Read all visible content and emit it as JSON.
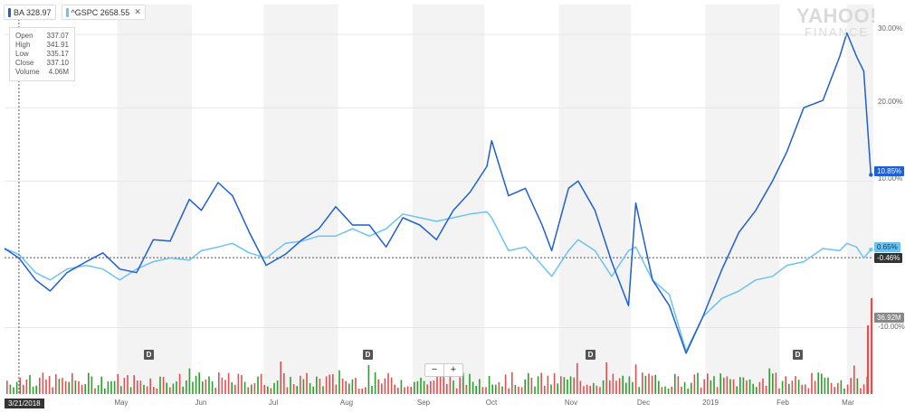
{
  "legend": [
    {
      "label": "BA 328.97",
      "color": "#1f5fd1",
      "close_icon": "close-icon"
    },
    {
      "label": "^GSPC 2658.55",
      "color": "#6cc3f2",
      "close_icon": "close-icon"
    }
  ],
  "tooltip": {
    "rows": [
      {
        "label": "Open",
        "value": "337.07"
      },
      {
        "label": "High",
        "value": "341.91"
      },
      {
        "label": "Low",
        "value": "335.17"
      },
      {
        "label": "Close",
        "value": "337.10"
      },
      {
        "label": "Volume",
        "value": "4.06M"
      }
    ]
  },
  "watermark": {
    "line1": "YAHOO!",
    "line2": "FINANCE"
  },
  "crosshair_date": "3/21/2018",
  "badges": {
    "ba": "10.85%",
    "gspc": "0.65%",
    "baseline": "-0.46%",
    "volume": "36.92M"
  },
  "zoom": {
    "minus": "−",
    "plus": "+"
  },
  "dividend_marker": "D",
  "colors": {
    "ba": "#1f5fd1",
    "gspc": "#6cc3f2",
    "vol_up": "#2ca02c",
    "vol_down": "#e05050",
    "band": "#f3f3f3"
  },
  "chart_data": {
    "type": "line",
    "ylim": [
      -14,
      31
    ],
    "yticks": [
      30,
      20,
      10,
      -10
    ],
    "ytick_labels": [
      "30.00%",
      "20.00%",
      "10.00%",
      "-10.00%"
    ],
    "x_labels": [
      "May",
      "Jun",
      "Jul",
      "Aug",
      "Sep",
      "Oct",
      "Nov",
      "Dec",
      "2019",
      "Feb",
      "Mar"
    ],
    "x_label_dates": [
      "2018-05-01",
      "2018-06-01",
      "2018-07-01",
      "2018-08-01",
      "2018-09-01",
      "2018-10-01",
      "2018-11-01",
      "2018-12-01",
      "2019-01-01",
      "2019-02-01",
      "2019-03-01"
    ],
    "x_range": [
      "2018-03-15",
      "2019-03-12"
    ],
    "crosshair": "2018-03-21",
    "dividend_dates": [
      "2018-05-10",
      "2018-08-09",
      "2018-11-08",
      "2019-02-07"
    ],
    "series": [
      {
        "name": "BA",
        "points": [
          [
            "2018-03-15",
            0.8
          ],
          [
            "2018-03-21",
            -0.5
          ],
          [
            "2018-03-28",
            -3.5
          ],
          [
            "2018-04-03",
            -5.0
          ],
          [
            "2018-04-10",
            -2.5
          ],
          [
            "2018-04-18",
            -1.0
          ],
          [
            "2018-04-25",
            0.2
          ],
          [
            "2018-05-02",
            -2.0
          ],
          [
            "2018-05-09",
            -2.5
          ],
          [
            "2018-05-16",
            2.0
          ],
          [
            "2018-05-23",
            1.8
          ],
          [
            "2018-05-31",
            7.5
          ],
          [
            "2018-06-05",
            6.0
          ],
          [
            "2018-06-12",
            9.8
          ],
          [
            "2018-06-18",
            8.0
          ],
          [
            "2018-06-25",
            3.0
          ],
          [
            "2018-07-02",
            -1.5
          ],
          [
            "2018-07-10",
            0.0
          ],
          [
            "2018-07-17",
            2.0
          ],
          [
            "2018-07-24",
            3.5
          ],
          [
            "2018-07-31",
            6.5
          ],
          [
            "2018-08-07",
            4.0
          ],
          [
            "2018-08-14",
            4.0
          ],
          [
            "2018-08-21",
            1.0
          ],
          [
            "2018-08-28",
            5.0
          ],
          [
            "2018-09-04",
            4.0
          ],
          [
            "2018-09-11",
            2.0
          ],
          [
            "2018-09-18",
            6.0
          ],
          [
            "2018-09-25",
            8.5
          ],
          [
            "2018-10-02",
            12.0
          ],
          [
            "2018-10-04",
            15.5
          ],
          [
            "2018-10-11",
            8.0
          ],
          [
            "2018-10-18",
            9.0
          ],
          [
            "2018-10-25",
            4.0
          ],
          [
            "2018-10-29",
            0.5
          ],
          [
            "2018-11-05",
            9.0
          ],
          [
            "2018-11-09",
            10.0
          ],
          [
            "2018-11-16",
            6.0
          ],
          [
            "2018-11-23",
            -1.0
          ],
          [
            "2018-11-30",
            -7.0
          ],
          [
            "2018-12-03",
            7.0
          ],
          [
            "2018-12-10",
            -3.5
          ],
          [
            "2018-12-17",
            -7.0
          ],
          [
            "2018-12-24",
            -13.5
          ],
          [
            "2018-12-31",
            -8.5
          ],
          [
            "2019-01-08",
            -2.0
          ],
          [
            "2019-01-15",
            3.0
          ],
          [
            "2019-01-22",
            6.0
          ],
          [
            "2019-01-29",
            10.0
          ],
          [
            "2019-02-04",
            14.0
          ],
          [
            "2019-02-11",
            20.0
          ],
          [
            "2019-02-19",
            21.0
          ],
          [
            "2019-02-26",
            27.0
          ],
          [
            "2019-03-01",
            30.2
          ],
          [
            "2019-03-05",
            27.0
          ],
          [
            "2019-03-08",
            25.0
          ],
          [
            "2019-03-11",
            10.85
          ]
        ]
      },
      {
        "name": "^GSPC",
        "points": [
          [
            "2018-03-15",
            0.8
          ],
          [
            "2018-03-21",
            0.0
          ],
          [
            "2018-03-28",
            -2.5
          ],
          [
            "2018-04-03",
            -3.5
          ],
          [
            "2018-04-10",
            -2.0
          ],
          [
            "2018-04-18",
            -1.5
          ],
          [
            "2018-04-25",
            -2.0
          ],
          [
            "2018-05-02",
            -3.5
          ],
          [
            "2018-05-09",
            -2.0
          ],
          [
            "2018-05-16",
            -1.0
          ],
          [
            "2018-05-23",
            -0.5
          ],
          [
            "2018-05-31",
            -0.8
          ],
          [
            "2018-06-05",
            0.5
          ],
          [
            "2018-06-12",
            1.0
          ],
          [
            "2018-06-18",
            1.5
          ],
          [
            "2018-06-25",
            0.2
          ],
          [
            "2018-07-02",
            -0.5
          ],
          [
            "2018-07-10",
            1.5
          ],
          [
            "2018-07-17",
            1.8
          ],
          [
            "2018-07-24",
            2.5
          ],
          [
            "2018-07-31",
            2.5
          ],
          [
            "2018-08-07",
            3.5
          ],
          [
            "2018-08-14",
            2.5
          ],
          [
            "2018-08-21",
            3.5
          ],
          [
            "2018-08-28",
            5.5
          ],
          [
            "2018-09-04",
            5.0
          ],
          [
            "2018-09-11",
            4.5
          ],
          [
            "2018-09-18",
            5.0
          ],
          [
            "2018-09-25",
            5.5
          ],
          [
            "2018-10-02",
            5.8
          ],
          [
            "2018-10-04",
            5.0
          ],
          [
            "2018-10-11",
            0.5
          ],
          [
            "2018-10-18",
            1.0
          ],
          [
            "2018-10-25",
            -1.5
          ],
          [
            "2018-10-29",
            -3.0
          ],
          [
            "2018-11-05",
            0.5
          ],
          [
            "2018-11-09",
            2.0
          ],
          [
            "2018-11-16",
            0.5
          ],
          [
            "2018-11-23",
            -3.0
          ],
          [
            "2018-11-30",
            0.5
          ],
          [
            "2018-12-03",
            1.0
          ],
          [
            "2018-12-10",
            -3.5
          ],
          [
            "2018-12-17",
            -5.5
          ],
          [
            "2018-12-24",
            -13.2
          ],
          [
            "2018-12-31",
            -8.5
          ],
          [
            "2019-01-08",
            -6.0
          ],
          [
            "2019-01-15",
            -5.0
          ],
          [
            "2019-01-22",
            -3.5
          ],
          [
            "2019-01-29",
            -3.0
          ],
          [
            "2019-02-04",
            -1.5
          ],
          [
            "2019-02-11",
            -1.0
          ],
          [
            "2019-02-19",
            0.8
          ],
          [
            "2019-02-26",
            0.5
          ],
          [
            "2019-03-01",
            1.5
          ],
          [
            "2019-03-05",
            1.0
          ],
          [
            "2019-03-08",
            -0.5
          ],
          [
            "2019-03-11",
            0.65
          ]
        ]
      }
    ]
  }
}
